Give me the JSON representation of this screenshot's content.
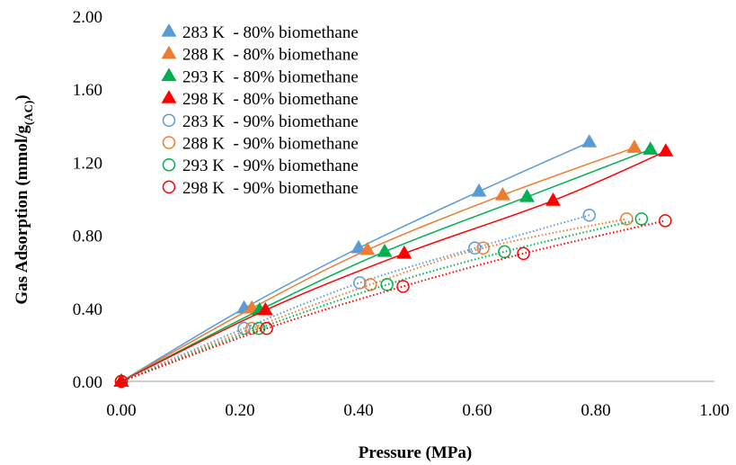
{
  "chart_data": {
    "type": "scatter",
    "xlabel": "Pressure (MPa)",
    "ylabel": {
      "main": "Gas Adsorption (mmol/g",
      "sub": "(AC)",
      "close": ")"
    },
    "xlim": [
      0,
      1.0
    ],
    "ylim": [
      0,
      2.0
    ],
    "xticks": [
      "0.00",
      "0.20",
      "0.40",
      "0.60",
      "0.80",
      "1.00"
    ],
    "yticks": [
      "0.00",
      "0.40",
      "0.80",
      "1.20",
      "1.60",
      "2.00"
    ],
    "grid": false,
    "legend_position": "top-left",
    "series": [
      {
        "name": "283 K  - 80% biomethane",
        "marker": "triangle-filled",
        "color": "#5b9bd5",
        "line": "solid",
        "x": [
          0.0,
          0.207,
          0.4,
          0.603,
          0.789
        ],
        "y": [
          0.0,
          0.4,
          0.73,
          1.04,
          1.31
        ]
      },
      {
        "name": "288 K  - 80% biomethane",
        "marker": "triangle-filled",
        "color": "#ed7d31",
        "line": "solid",
        "x": [
          0.0,
          0.22,
          0.415,
          0.643,
          0.865
        ],
        "y": [
          0.0,
          0.4,
          0.72,
          1.02,
          1.28
        ]
      },
      {
        "name": "293 K  - 80% biomethane",
        "marker": "triangle-filled",
        "color": "#00b050",
        "line": "solid",
        "x": [
          0.0,
          0.233,
          0.444,
          0.684,
          0.892
        ],
        "y": [
          0.0,
          0.39,
          0.71,
          1.01,
          1.27
        ]
      },
      {
        "name": "298 K  - 80% biomethane",
        "marker": "triangle-filled",
        "color": "#ff0000",
        "line": "solid",
        "x": [
          0.0,
          0.243,
          0.477,
          0.728,
          0.918
        ],
        "y": [
          0.0,
          0.39,
          0.7,
          0.99,
          1.26
        ]
      },
      {
        "name": "283 K  - 90% biomethane",
        "marker": "circle-open",
        "color": "#5b9bd5",
        "line": "dotted",
        "x": [
          0.0,
          0.207,
          0.402,
          0.596,
          0.789
        ],
        "y": [
          0.0,
          0.29,
          0.54,
          0.73,
          0.91
        ]
      },
      {
        "name": "288 K  - 90% biomethane",
        "marker": "circle-open",
        "color": "#ed7d31",
        "line": "dotted",
        "x": [
          0.0,
          0.22,
          0.42,
          0.61,
          0.852
        ],
        "y": [
          0.0,
          0.29,
          0.53,
          0.73,
          0.89
        ]
      },
      {
        "name": "293 K  - 90% biomethane",
        "marker": "circle-open",
        "color": "#00b050",
        "line": "dotted",
        "x": [
          0.0,
          0.232,
          0.448,
          0.646,
          0.877
        ],
        "y": [
          0.0,
          0.29,
          0.53,
          0.71,
          0.89
        ]
      },
      {
        "name": "298 K  - 90% biomethane",
        "marker": "circle-open",
        "color": "#ff0000",
        "line": "dotted",
        "x": [
          0.0,
          0.245,
          0.475,
          0.678,
          0.917
        ],
        "y": [
          0.0,
          0.29,
          0.52,
          0.7,
          0.88
        ]
      }
    ]
  }
}
